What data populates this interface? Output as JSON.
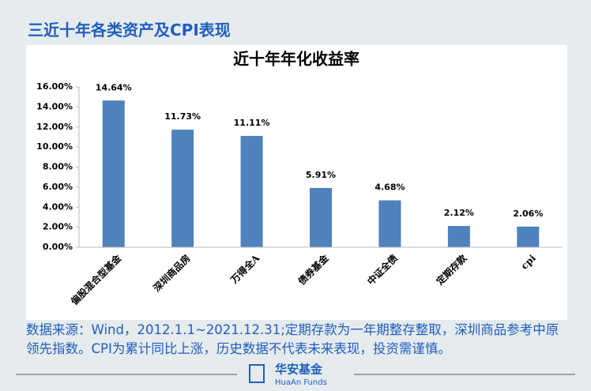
{
  "header": {
    "title": "三近十年各类资产及CPI表现"
  },
  "chart_data": {
    "type": "bar",
    "title": "近十年年化收益率",
    "categories": [
      "偏股混合型基金",
      "深圳商品房",
      "万得全A",
      "债券基金",
      "中证全债",
      "定期存款",
      "cpi"
    ],
    "values": [
      14.64,
      11.73,
      11.11,
      5.91,
      4.68,
      2.12,
      2.06
    ],
    "value_labels": [
      "14.64%",
      "11.73%",
      "11.11%",
      "5.91%",
      "4.68%",
      "2.12%",
      "2.06%"
    ],
    "color": "#4f81bd",
    "ylim": [
      0,
      16
    ],
    "yticks": [
      {
        "value": 0,
        "label": "0.00%"
      },
      {
        "value": 2,
        "label": "2.00%"
      },
      {
        "value": 4,
        "label": "4.00%"
      },
      {
        "value": 6,
        "label": "6.00%"
      },
      {
        "value": 8,
        "label": "8.00%"
      },
      {
        "value": 10,
        "label": "10.00%"
      },
      {
        "value": 12,
        "label": "12.00%"
      },
      {
        "value": 14,
        "label": "14.00%"
      },
      {
        "value": 16,
        "label": "16.00%"
      }
    ],
    "grid": false
  },
  "footer": {
    "note": "数据来源：Wind，2012.1.1~2021.12.31;定期存款为一年期整存整取，深圳商品参考中原领先指数。CPI为累计同比上涨，历史数据不代表未来表现，投资需谨慎。",
    "logo_cn": "华安基金",
    "logo_en": "HuaAn Funds"
  }
}
